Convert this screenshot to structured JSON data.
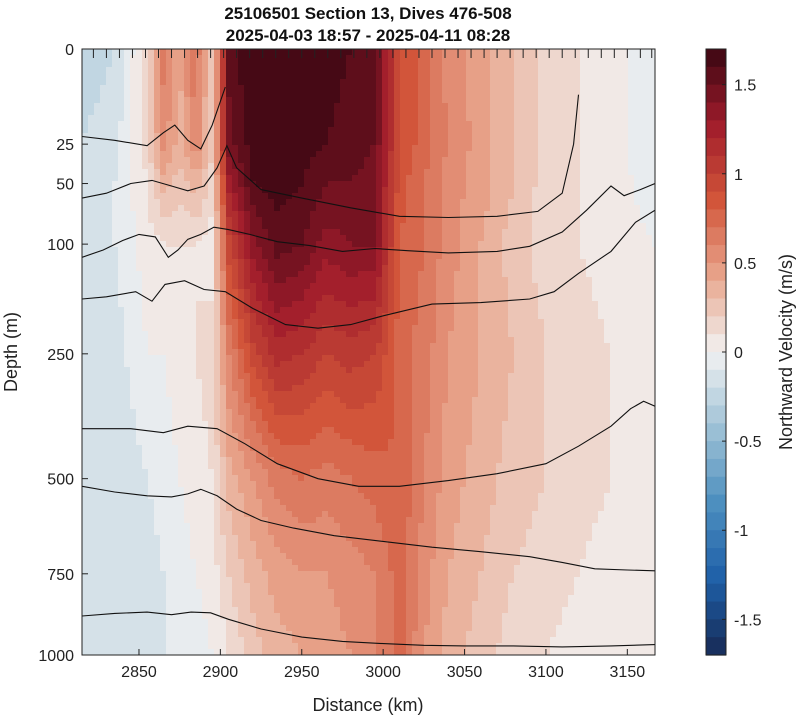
{
  "chart_data": {
    "type": "heatmap",
    "title": "25106501 Section 13, Dives 476-508",
    "subtitle": "2025-04-03 18:57 - 2025-04-11 08:28",
    "xlabel": "Distance (km)",
    "ylabel": "Depth (m)",
    "colorbar_label": "Northward Velocity (m/s)",
    "xlim": [
      2815,
      3167
    ],
    "ylim": [
      0,
      1000
    ],
    "y_scale": "stretched (non-linear)",
    "clim": [
      -1.7,
      1.7
    ],
    "x_ticks": [
      {
        "value": 2850,
        "label": "2850"
      },
      {
        "value": 2900,
        "label": "2900"
      },
      {
        "value": 2950,
        "label": "2950"
      },
      {
        "value": 3000,
        "label": "3000"
      },
      {
        "value": 3050,
        "label": "3050"
      },
      {
        "value": 3100,
        "label": "3100"
      },
      {
        "value": 3150,
        "label": "3150"
      }
    ],
    "y_ticks": [
      {
        "value": 0,
        "label": "0"
      },
      {
        "value": 25,
        "label": "25"
      },
      {
        "value": 50,
        "label": "50"
      },
      {
        "value": 100,
        "label": "100"
      },
      {
        "value": 250,
        "label": "250"
      },
      {
        "value": 500,
        "label": "500"
      },
      {
        "value": 750,
        "label": "750"
      },
      {
        "value": 1000,
        "label": "1000"
      }
    ],
    "depth_scale_knots": [
      {
        "depth": 0,
        "frac": 0
      },
      {
        "depth": 25,
        "frac": 0.157
      },
      {
        "depth": 50,
        "frac": 0.222
      },
      {
        "depth": 100,
        "frac": 0.322
      },
      {
        "depth": 250,
        "frac": 0.503
      },
      {
        "depth": 500,
        "frac": 0.709
      },
      {
        "depth": 750,
        "frac": 0.866
      },
      {
        "depth": 1000,
        "frac": 1
      }
    ],
    "colorbar_ticks": [
      {
        "value": 1.5,
        "label": "1.5"
      },
      {
        "value": 1,
        "label": "1"
      },
      {
        "value": 0.5,
        "label": "0.5"
      },
      {
        "value": 0,
        "label": "0"
      },
      {
        "value": -0.5,
        "label": "-0.5"
      },
      {
        "value": -1,
        "label": "-1"
      },
      {
        "value": -1.5,
        "label": "-1.5"
      }
    ],
    "colormap": [
      "#172a55",
      "#1e5fa8",
      "#4d8fbf",
      "#9fc2d6",
      "#f2f2f2",
      "#e8a58c",
      "#d2553a",
      "#a01c2b",
      "#3a0712"
    ],
    "dive_positions_x": [
      2822,
      2830,
      2838,
      2846,
      2854,
      2862,
      2870,
      2878,
      2886,
      2894,
      2902,
      2910,
      2918,
      2926,
      2934,
      2942,
      2950,
      2958,
      2966,
      2974,
      2982,
      2990,
      2998,
      3006,
      3014,
      3022,
      3030,
      3038,
      3046,
      3054,
      3062,
      3070,
      3078,
      3086,
      3094,
      3102,
      3110,
      3118,
      3126,
      3134,
      3142,
      3150,
      3158,
      3165
    ],
    "velocity_field": {
      "x": [
        2815,
        2835,
        2855,
        2865,
        2875,
        2885,
        2895,
        2905,
        2920,
        2935,
        2950,
        2965,
        2980,
        2995,
        3010,
        3025,
        3040,
        3060,
        3080,
        3100,
        3120,
        3140,
        3167
      ],
      "depth": [
        0,
        25,
        50,
        100,
        250,
        500,
        750,
        1000
      ],
      "v": [
        [
          -0.25,
          -0.2,
          0.15,
          0.65,
          0.4,
          0.7,
          0.2,
          1.55,
          1.7,
          1.7,
          1.7,
          1.65,
          1.6,
          1.55,
          0.9,
          0.75,
          0.55,
          0.45,
          0.3,
          0.15,
          0.1,
          0.05,
          -0.1
        ],
        [
          -0.2,
          -0.15,
          0.15,
          0.55,
          0.35,
          0.6,
          0.2,
          1.45,
          1.65,
          1.7,
          1.65,
          1.6,
          1.55,
          1.5,
          0.9,
          0.75,
          0.6,
          0.45,
          0.3,
          0.15,
          0.1,
          0.05,
          -0.1
        ],
        [
          -0.15,
          -0.1,
          0.1,
          0.35,
          0.25,
          0.35,
          0.15,
          1.25,
          1.6,
          1.65,
          1.6,
          1.5,
          1.5,
          1.45,
          0.85,
          0.7,
          0.55,
          0.45,
          0.3,
          0.15,
          0.1,
          0.05,
          -0.05
        ],
        [
          -0.15,
          -0.1,
          0.05,
          0.1,
          0.1,
          0.1,
          0.05,
          0.95,
          1.35,
          1.55,
          1.5,
          1.35,
          1.4,
          1.4,
          0.8,
          0.7,
          0.55,
          0.4,
          0.25,
          0.15,
          0.1,
          0.05,
          0.0
        ],
        [
          -0.2,
          -0.15,
          0.0,
          0.0,
          0.05,
          0.1,
          0.15,
          0.6,
          0.95,
          1.15,
          1.1,
          1.0,
          1.05,
          1.0,
          0.75,
          0.65,
          0.5,
          0.4,
          0.3,
          0.2,
          0.15,
          0.1,
          0.05
        ],
        [
          -0.2,
          -0.2,
          -0.1,
          -0.05,
          0.0,
          0.05,
          0.1,
          0.35,
          0.5,
          0.65,
          0.7,
          0.65,
          0.7,
          0.75,
          0.8,
          0.6,
          0.45,
          0.35,
          0.25,
          0.2,
          0.15,
          0.1,
          0.05
        ],
        [
          -0.2,
          -0.15,
          -0.15,
          -0.1,
          -0.05,
          0.0,
          0.05,
          0.2,
          0.35,
          0.45,
          0.5,
          0.5,
          0.55,
          0.6,
          0.75,
          0.55,
          0.4,
          0.3,
          0.2,
          0.15,
          0.1,
          0.05,
          0.05
        ],
        [
          -0.2,
          -0.15,
          -0.15,
          -0.1,
          -0.1,
          -0.05,
          0.0,
          0.1,
          0.25,
          0.35,
          0.4,
          0.45,
          0.5,
          0.6,
          0.75,
          0.5,
          0.35,
          0.25,
          0.15,
          0.1,
          0.05,
          0.05,
          0.0
        ]
      ]
    },
    "contour_lines": [
      {
        "points": [
          [
            2815,
            23
          ],
          [
            2835,
            24
          ],
          [
            2855,
            26
          ],
          [
            2865,
            22
          ],
          [
            2872,
            20
          ],
          [
            2880,
            24
          ],
          [
            2888,
            28
          ],
          [
            2895,
            20
          ],
          [
            2903,
            10
          ]
        ]
      },
      {
        "points": [
          [
            2815,
            62
          ],
          [
            2830,
            58
          ],
          [
            2845,
            50
          ],
          [
            2858,
            48
          ],
          [
            2870,
            52
          ],
          [
            2880,
            56
          ],
          [
            2890,
            52
          ],
          [
            2898,
            40
          ],
          [
            2904,
            26
          ],
          [
            2910,
            40
          ],
          [
            2925,
            55
          ],
          [
            2950,
            62
          ],
          [
            2980,
            70
          ],
          [
            3010,
            77
          ],
          [
            3040,
            78
          ],
          [
            3070,
            77
          ],
          [
            3095,
            73
          ],
          [
            3110,
            58
          ],
          [
            3117,
            25
          ],
          [
            3120,
            12
          ]
        ]
      },
      {
        "points": [
          [
            2815,
            118
          ],
          [
            2828,
            108
          ],
          [
            2840,
            97
          ],
          [
            2850,
            92
          ],
          [
            2860,
            94
          ],
          [
            2868,
            118
          ],
          [
            2874,
            108
          ],
          [
            2880,
            96
          ],
          [
            2888,
            92
          ],
          [
            2896,
            86
          ],
          [
            2905,
            88
          ],
          [
            2918,
            92
          ],
          [
            2935,
            98
          ],
          [
            2955,
            102
          ],
          [
            2975,
            110
          ],
          [
            2995,
            106
          ],
          [
            3015,
            109
          ],
          [
            3040,
            112
          ],
          [
            3070,
            110
          ],
          [
            3090,
            103
          ],
          [
            3110,
            90
          ],
          [
            3125,
            72
          ],
          [
            3140,
            52
          ],
          [
            3148,
            60
          ],
          [
            3158,
            55
          ],
          [
            3167,
            50
          ]
        ]
      },
      {
        "points": [
          [
            2815,
            175
          ],
          [
            2830,
            172
          ],
          [
            2848,
            165
          ],
          [
            2858,
            178
          ],
          [
            2866,
            155
          ],
          [
            2878,
            150
          ],
          [
            2890,
            162
          ],
          [
            2903,
            165
          ],
          [
            2920,
            188
          ],
          [
            2940,
            210
          ],
          [
            2960,
            215
          ],
          [
            2980,
            210
          ],
          [
            3000,
            198
          ],
          [
            3030,
            182
          ],
          [
            3060,
            180
          ],
          [
            3090,
            175
          ],
          [
            3105,
            165
          ],
          [
            3120,
            140
          ],
          [
            3140,
            110
          ],
          [
            3155,
            82
          ],
          [
            3167,
            72
          ]
        ]
      },
      {
        "points": [
          [
            2815,
            400
          ],
          [
            2845,
            400
          ],
          [
            2865,
            408
          ],
          [
            2880,
            395
          ],
          [
            2898,
            400
          ],
          [
            2915,
            430
          ],
          [
            2935,
            470
          ],
          [
            2960,
            500
          ],
          [
            2985,
            520
          ],
          [
            3010,
            520
          ],
          [
            3040,
            505
          ],
          [
            3070,
            490
          ],
          [
            3100,
            470
          ],
          [
            3120,
            435
          ],
          [
            3140,
            395
          ],
          [
            3152,
            360
          ],
          [
            3160,
            345
          ],
          [
            3167,
            355
          ]
        ]
      },
      {
        "points": [
          [
            2815,
            520
          ],
          [
            2835,
            535
          ],
          [
            2855,
            545
          ],
          [
            2870,
            548
          ],
          [
            2880,
            540
          ],
          [
            2888,
            528
          ],
          [
            2898,
            545
          ],
          [
            2910,
            580
          ],
          [
            2925,
            610
          ],
          [
            2945,
            630
          ],
          [
            2970,
            650
          ],
          [
            3000,
            665
          ],
          [
            3030,
            680
          ],
          [
            3060,
            692
          ],
          [
            3090,
            705
          ],
          [
            3110,
            720
          ],
          [
            3130,
            737
          ],
          [
            3150,
            740
          ],
          [
            3167,
            742
          ]
        ]
      },
      {
        "points": [
          [
            2815,
            880
          ],
          [
            2835,
            872
          ],
          [
            2855,
            868
          ],
          [
            2870,
            876
          ],
          [
            2882,
            868
          ],
          [
            2894,
            870
          ],
          [
            2905,
            890
          ],
          [
            2925,
            920
          ],
          [
            2950,
            945
          ],
          [
            2975,
            958
          ],
          [
            3000,
            965
          ],
          [
            3025,
            970
          ],
          [
            3050,
            972
          ],
          [
            3080,
            972
          ],
          [
            3110,
            975
          ],
          [
            3140,
            972
          ],
          [
            3167,
            968
          ]
        ]
      }
    ]
  }
}
